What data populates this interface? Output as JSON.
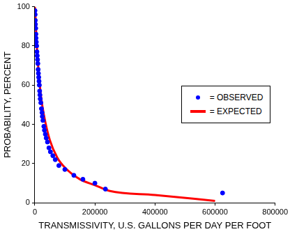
{
  "chart_data": {
    "type": "scatter",
    "x_label": "TRANSMISSIVITY, U.S. GALLONS PER DAY PER FOOT",
    "y_label": "PROBABILITY, PERCENT",
    "xlim": [
      0,
      800000
    ],
    "xticks": [
      0,
      200000,
      400000,
      600000,
      800000
    ],
    "ylim": [
      0,
      100
    ],
    "yticks": [
      0,
      20,
      40,
      60,
      80,
      100
    ],
    "grid": false,
    "legend": "right",
    "series": [
      {
        "name": "= OBSERVED",
        "type": "scatter",
        "color": "#0000ff",
        "marker": "circle",
        "x": [
          500,
          1000,
          1500,
          2000,
          3000,
          3500,
          4000,
          5000,
          6000,
          7000,
          8000,
          9000,
          10000,
          11000,
          12000,
          13000,
          14000,
          15000,
          16000,
          17000,
          18000,
          20000,
          22000,
          24000,
          25000,
          27000,
          30000,
          32000,
          35000,
          38000,
          42000,
          47000,
          52000,
          60000,
          68000,
          80000,
          100000,
          130000,
          160000,
          200000,
          235000,
          625000
        ],
        "values": [
          98,
          96,
          93,
          91,
          89,
          86,
          84,
          82,
          80,
          77,
          75,
          73,
          71,
          68,
          66,
          64,
          62,
          60,
          57,
          55,
          53,
          51,
          48,
          46,
          44,
          42,
          39,
          37,
          35,
          33,
          31,
          28,
          26,
          24,
          22,
          19,
          17,
          14,
          12,
          10,
          7,
          5
        ]
      },
      {
        "name": "= EXPECTED",
        "type": "line",
        "color": "#ff0000",
        "line_style": "solid",
        "x": [
          0,
          2000,
          5000,
          10000,
          20000,
          30000,
          50000,
          75000,
          100000,
          150000,
          200000,
          250000,
          400000,
          600000
        ],
        "values": [
          100,
          95,
          85,
          72,
          55,
          45,
          32,
          23,
          18,
          12,
          9,
          6,
          4,
          1
        ]
      }
    ]
  }
}
